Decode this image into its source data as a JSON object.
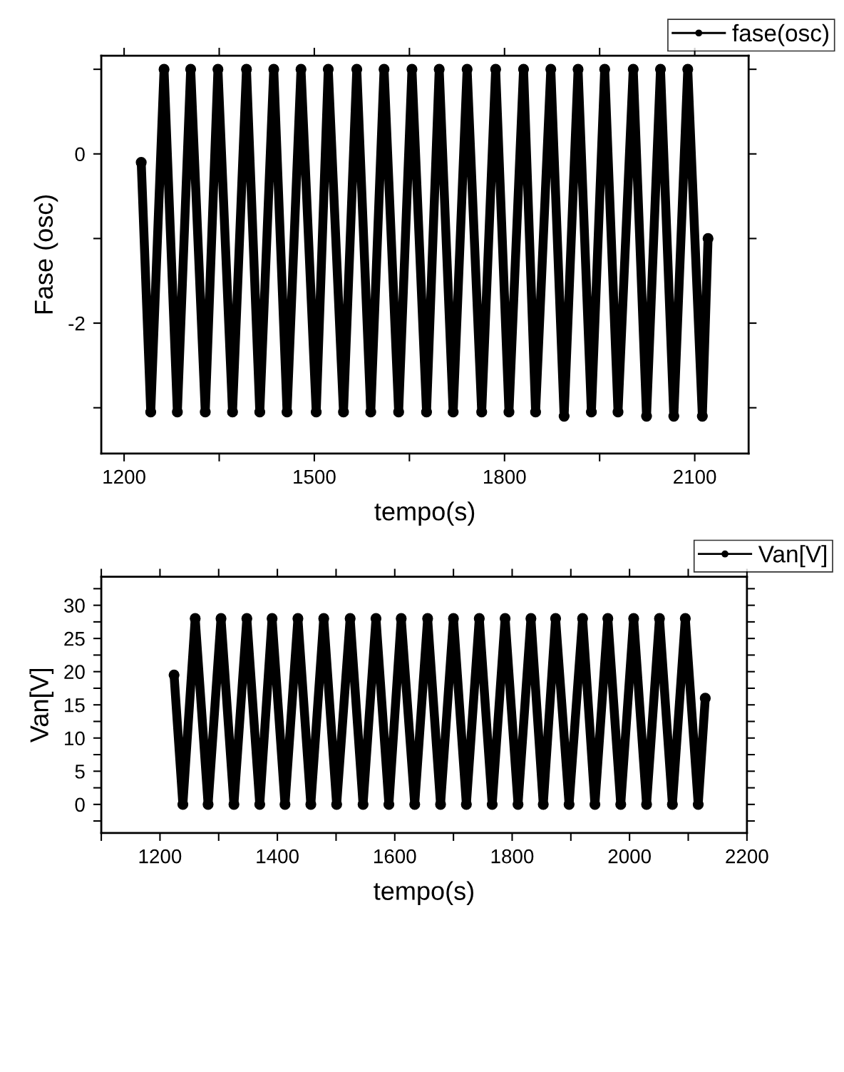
{
  "chart_data": [
    {
      "type": "line",
      "xlabel": "tempo(s)",
      "ylabel": "Fase (osc)",
      "legend": "top right",
      "marker": "circle",
      "line_style": "solid",
      "grid": false,
      "xlim": [
        1164,
        2185
      ],
      "xticks": [
        1200,
        {
          "value": 1350,
          "label": null
        },
        1500,
        {
          "value": 1650,
          "label": null
        },
        1800,
        {
          "value": 1950,
          "label": null
        },
        2100
      ],
      "ylim": [
        -3.54,
        1.16
      ],
      "yticks": [
        {
          "value": -3,
          "label": null
        },
        -2,
        {
          "value": -1,
          "label": null
        },
        0,
        {
          "value": 1,
          "label": null
        }
      ],
      "series": [
        {
          "name": "fase(osc)",
          "color": "#000000",
          "x": [
            1227,
            1242,
            1263,
            1284,
            1305,
            1328,
            1348,
            1371,
            1393,
            1414,
            1436,
            1457,
            1479,
            1503,
            1522,
            1546,
            1567,
            1589,
            1610,
            1633,
            1654,
            1677,
            1697,
            1719,
            1741,
            1764,
            1786,
            1807,
            1830,
            1849,
            1873,
            1894,
            1916,
            1937,
            1958,
            1979,
            2003,
            2024,
            2046,
            2067,
            2089,
            2112,
            2121
          ],
          "values": [
            -0.1,
            -3.05,
            1.0,
            -3.05,
            1.0,
            -3.05,
            1.0,
            -3.05,
            1.0,
            -3.05,
            1.0,
            -3.05,
            1.0,
            -3.05,
            1.0,
            -3.05,
            1.0,
            -3.05,
            1.0,
            -3.05,
            1.0,
            -3.05,
            1.0,
            -3.05,
            1.0,
            -3.05,
            1.0,
            -3.05,
            1.0,
            -3.05,
            1.0,
            -3.1,
            1.0,
            -3.05,
            1.0,
            -3.05,
            1.0,
            -3.1,
            1.0,
            -3.1,
            1.0,
            -3.1,
            -1.0
          ]
        }
      ]
    },
    {
      "type": "line",
      "xlabel": "tempo(s)",
      "ylabel": "Van[V]",
      "legend": "top right",
      "marker": "circle",
      "line_style": "solid",
      "grid": false,
      "xlim": [
        1100,
        2200
      ],
      "xticks": [
        {
          "value": 1100,
          "label": null
        },
        1200,
        {
          "value": 1300,
          "label": null
        },
        1400,
        {
          "value": 1500,
          "label": null
        },
        1600,
        {
          "value": 1700,
          "label": null
        },
        1800,
        {
          "value": 1900,
          "label": null
        },
        2000,
        {
          "value": 2100,
          "label": null
        },
        2200
      ],
      "ylim": [
        -4.3,
        34.3
      ],
      "yticks": [
        {
          "value": -2.5,
          "label": null
        },
        0,
        {
          "value": 2.5,
          "label": null
        },
        5,
        {
          "value": 7.5,
          "label": null
        },
        10,
        {
          "value": 12.5,
          "label": null
        },
        15,
        {
          "value": 17.5,
          "label": null
        },
        20,
        {
          "value": 22.5,
          "label": null
        },
        25,
        {
          "value": 27.5,
          "label": null
        },
        30,
        {
          "value": 32.5,
          "label": null
        }
      ],
      "series": [
        {
          "name": "Van[V]",
          "color": "#000000",
          "x": [
            1224,
            1239,
            1260,
            1282,
            1304,
            1326,
            1348,
            1370,
            1391,
            1413,
            1435,
            1457,
            1479,
            1501,
            1524,
            1546,
            1568,
            1590,
            1611,
            1634,
            1656,
            1678,
            1700,
            1722,
            1744,
            1766,
            1788,
            1810,
            1832,
            1853,
            1874,
            1897,
            1920,
            1941,
            1963,
            1985,
            2007,
            2029,
            2051,
            2073,
            2095,
            2117,
            2129
          ],
          "values": [
            19.5,
            0,
            28,
            0,
            28,
            0,
            28,
            0,
            28,
            0,
            28,
            0,
            28,
            0,
            28,
            0,
            28,
            0,
            28,
            0,
            28,
            0,
            28,
            0,
            28,
            0,
            28,
            0,
            28,
            0,
            28,
            0,
            28,
            0,
            28,
            0,
            28,
            0,
            28,
            0,
            28,
            0,
            16
          ]
        }
      ]
    }
  ]
}
